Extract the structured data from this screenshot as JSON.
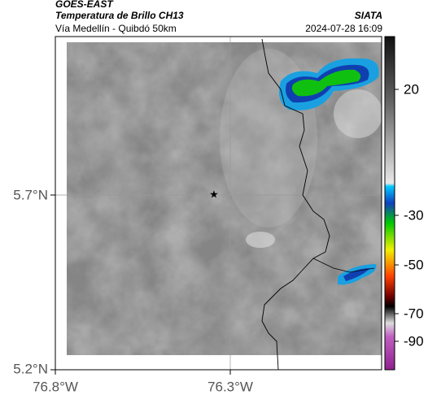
{
  "header": {
    "source": "GOES-EAST",
    "product": "Temperatura de Brillo CH13",
    "region": "Vía Medellín - Quibdó 50km",
    "agency": "SIATA",
    "timestamp": "2024-07-28 16:09"
  },
  "latitude_labels": [
    "5.7°N",
    "5.2°N"
  ],
  "longitude_labels": [
    "76.8°W",
    "76.3°W"
  ],
  "colorbar_ticks": [
    20,
    -30,
    -50,
    -70,
    -90
  ]
}
